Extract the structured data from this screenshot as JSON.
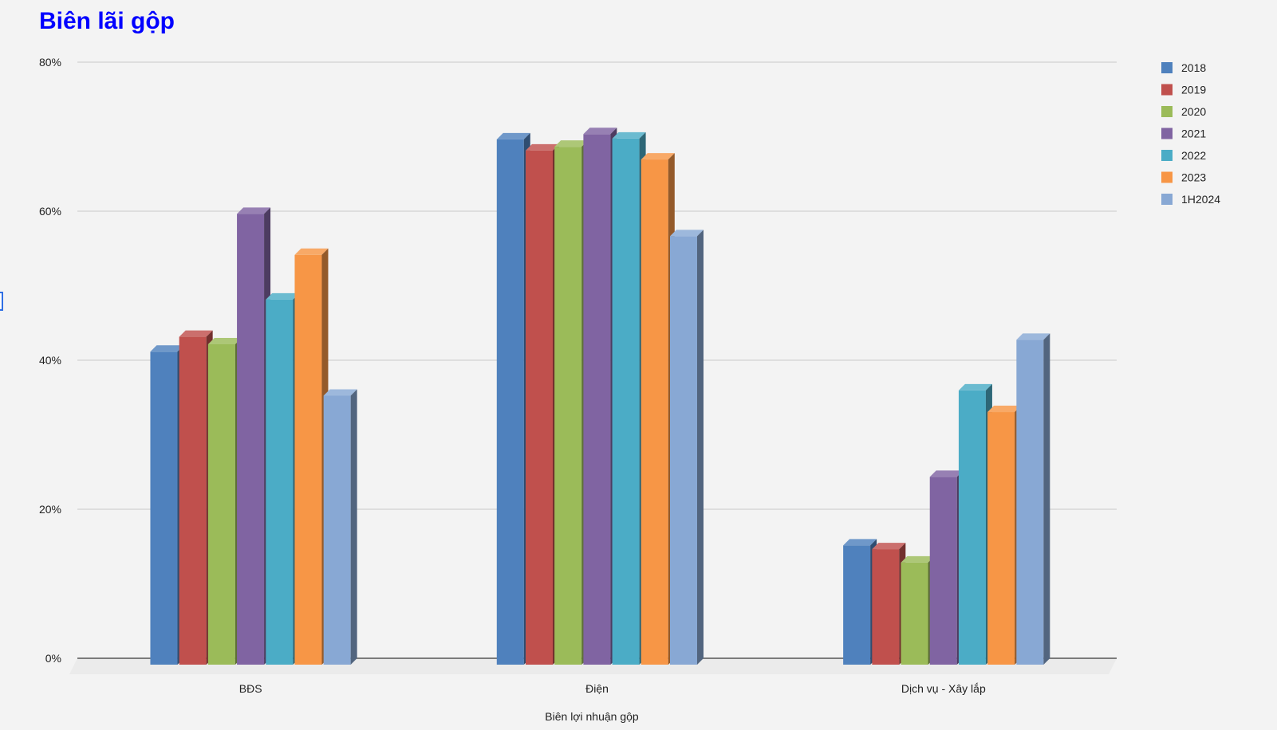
{
  "chart_data": {
    "type": "bar",
    "title": "Biên lãi gộp",
    "xlabel": "Biên lợi nhuận gộp",
    "ylabel": "",
    "ylim": [
      0,
      0.8
    ],
    "yticks": [
      {
        "value": 0,
        "label": "0%"
      },
      {
        "value": 0.2,
        "label": "20%"
      },
      {
        "value": 0.4,
        "label": "40%"
      },
      {
        "value": 0.6,
        "label": "60%"
      },
      {
        "value": 0.8,
        "label": "80%"
      }
    ],
    "categories": [
      "BĐS",
      "Điện",
      "Dịch vụ - Xây lắp"
    ],
    "series": [
      {
        "name": "2018",
        "color": "#4f81bd",
        "values": [
          0.42,
          0.705,
          0.16
        ]
      },
      {
        "name": "2019",
        "color": "#c0504d",
        "values": [
          0.44,
          0.69,
          0.155
        ]
      },
      {
        "name": "2020",
        "color": "#9bbb59",
        "values": [
          0.43,
          0.695,
          0.137
        ]
      },
      {
        "name": "2021",
        "color": "#8064a2",
        "values": [
          0.605,
          0.712,
          0.252
        ]
      },
      {
        "name": "2022",
        "color": "#4bacc6",
        "values": [
          0.49,
          0.706,
          0.368
        ]
      },
      {
        "name": "2023",
        "color": "#f79646",
        "values": [
          0.55,
          0.678,
          0.339
        ]
      },
      {
        "name": "1H2024",
        "color": "#88a8d4",
        "values": [
          0.361,
          0.575,
          0.436
        ]
      }
    ],
    "grid": true,
    "legend_position": "right-top",
    "style": "3d-column"
  }
}
